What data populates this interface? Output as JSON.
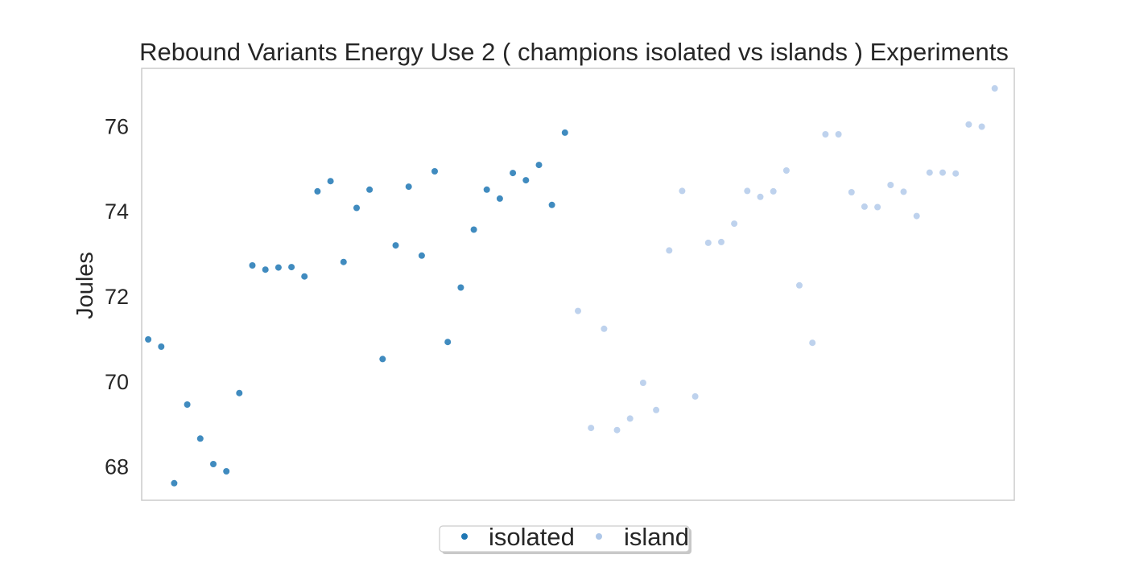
{
  "chart_data": {
    "type": "scatter",
    "title": "Rebound Variants Energy Use 2  ( champions isolated vs islands ) Experiments",
    "xlabel": "",
    "ylabel": "Joules",
    "xlim": [
      0.5,
      67.5
    ],
    "ylim": [
      67.2,
      77.35
    ],
    "yticks": [
      68,
      70,
      72,
      74,
      76
    ],
    "grid": false,
    "legend_position": "bottom-center",
    "series": [
      {
        "name": "isolated",
        "color": "#1f77b4",
        "x": [
          1,
          2,
          3,
          4,
          5,
          6,
          7,
          8,
          9,
          10,
          11,
          12,
          13,
          14,
          15,
          16,
          17,
          18,
          19,
          20,
          21,
          22,
          23,
          24,
          25,
          26,
          27,
          28,
          29,
          30,
          31,
          32,
          33
        ],
        "y": [
          70.98,
          70.81,
          67.6,
          69.45,
          68.65,
          68.05,
          67.88,
          69.72,
          72.72,
          72.62,
          72.67,
          72.68,
          72.46,
          74.46,
          74.7,
          72.8,
          74.07,
          74.5,
          70.52,
          73.19,
          74.57,
          72.95,
          74.93,
          70.92,
          72.2,
          73.56,
          74.5,
          74.29,
          74.89,
          74.72,
          75.08,
          74.14,
          75.84
        ]
      },
      {
        "name": "island",
        "color": "#aec7e8",
        "x": [
          34,
          35,
          36,
          37,
          38,
          39,
          40,
          41,
          42,
          43,
          44,
          45,
          46,
          47,
          48,
          49,
          50,
          51,
          52,
          53,
          54,
          55,
          56,
          57,
          58,
          59,
          60,
          61,
          62,
          63,
          64,
          65,
          66
        ],
        "y": [
          71.65,
          68.9,
          71.23,
          68.85,
          69.12,
          69.96,
          69.32,
          73.07,
          74.47,
          69.64,
          73.25,
          73.27,
          73.7,
          74.47,
          74.33,
          74.46,
          74.95,
          72.25,
          70.9,
          75.8,
          75.8,
          74.44,
          74.1,
          74.09,
          74.61,
          74.45,
          73.88,
          74.9,
          74.9,
          74.88,
          76.03,
          75.98,
          76.88
        ]
      }
    ]
  }
}
